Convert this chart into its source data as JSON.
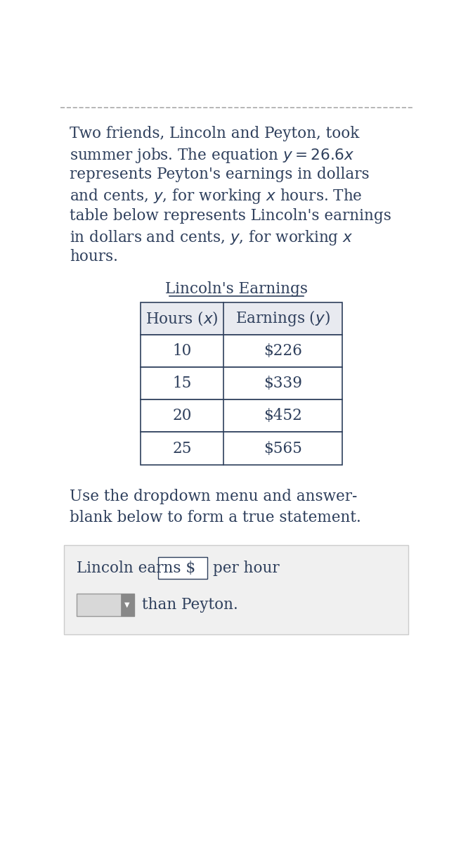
{
  "bg_color": "#ffffff",
  "text_color": "#2e3f5c",
  "top_dashed_color": "#aaaaaa",
  "paragraph": [
    "Two friends, Lincoln and Peyton, took",
    "summer jobs. The equation $y = 26.6x$",
    "represents Peyton's earnings in dollars",
    "and cents, $y$, for working $x$ hours. The",
    "table below represents Lincoln's earnings",
    "in dollars and cents, $y$, for working $x$",
    "hours."
  ],
  "table_title": "Lincoln's Earnings",
  "table_headers": [
    "Hours ($x$)",
    "Earnings ($y$)"
  ],
  "table_rows": [
    [
      "10",
      "$226"
    ],
    [
      "15",
      "$339"
    ],
    [
      "20",
      "$452"
    ],
    [
      "25",
      "$565"
    ]
  ],
  "instruction": [
    "Use the dropdown menu and answer-",
    "blank below to form a true statement."
  ],
  "answer_line1_before": "Lincoln earns $",
  "answer_line1_after": "per hour",
  "answer_line2_after": "than Peyton.",
  "table_header_bg": "#e8eaf0",
  "table_border_color": "#2e3f5c",
  "answer_box_bg": "#f0f0f0",
  "dropdown_bg": "#d8d8d8",
  "input_box_color": "#ffffff"
}
